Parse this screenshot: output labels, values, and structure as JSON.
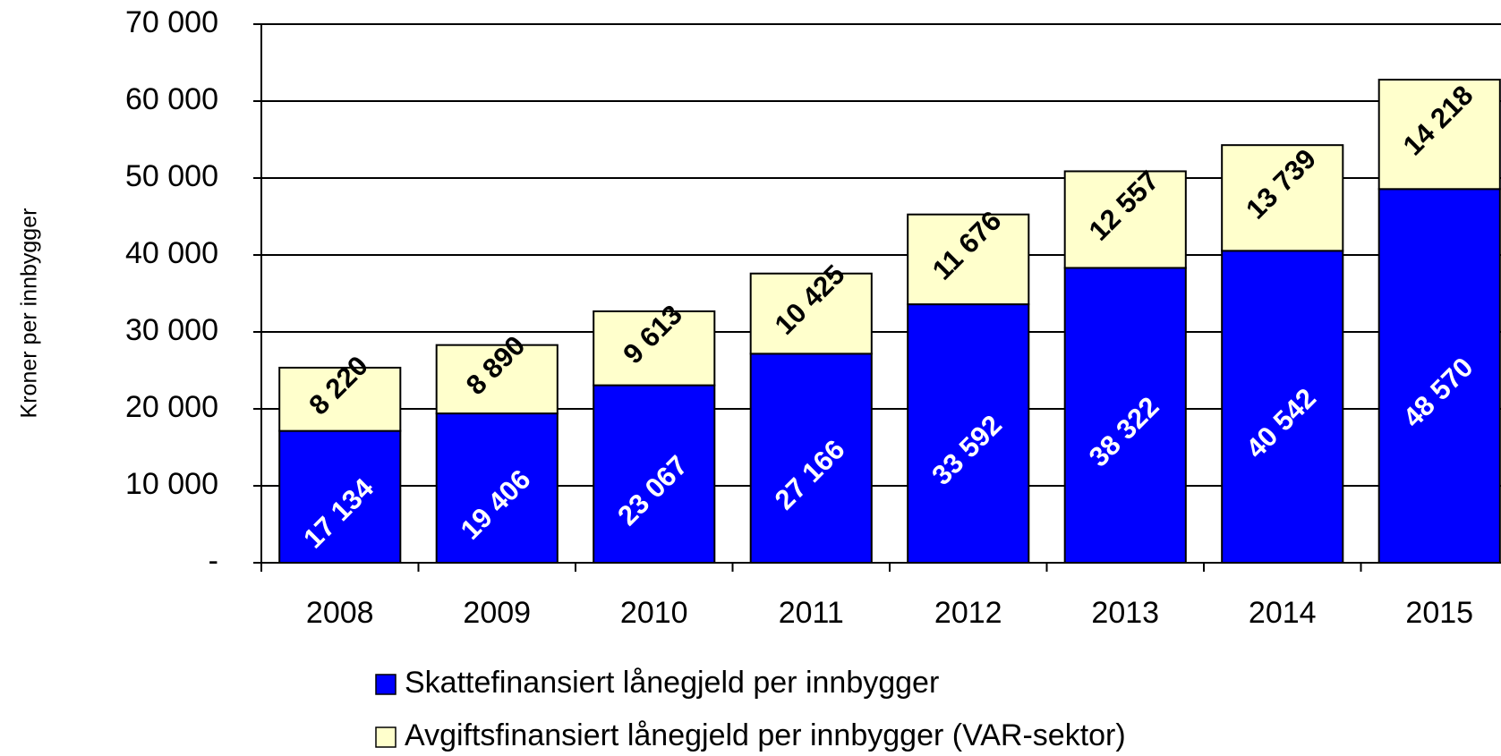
{
  "chart_data": {
    "type": "stacked-bar",
    "y_label": "Kroner per innbygger",
    "categories": [
      "2008",
      "2009",
      "2010",
      "2011",
      "2012",
      "2013",
      "2014",
      "2015"
    ],
    "series": [
      {
        "name": "Skattefinansiert lånegjeld per innbygger",
        "color": "#0000ff",
        "values": [
          17134,
          19406,
          23067,
          27166,
          33592,
          38322,
          40542,
          48570
        ],
        "value_labels": [
          "17 134",
          "19 406",
          "23 067",
          "27 166",
          "33 592",
          "38 322",
          "40 542",
          "48 570"
        ]
      },
      {
        "name": "Avgiftsfinansiert lånegjeld per innbygger (VAR-sektor)",
        "color": "#ffffcc",
        "values": [
          8220,
          8890,
          9613,
          10425,
          11676,
          12557,
          13739,
          14218
        ],
        "value_labels": [
          "8 220",
          "8 890",
          "9 613",
          "10 425",
          "11 676",
          "12 557",
          "13 739",
          "14 218"
        ]
      }
    ],
    "ylim": [
      0,
      70000
    ],
    "yticks": [
      {
        "value": 0,
        "label": "-"
      },
      {
        "value": 10000,
        "label": "10 000"
      },
      {
        "value": 20000,
        "label": "20 000"
      },
      {
        "value": 30000,
        "label": "30 000"
      },
      {
        "value": 40000,
        "label": "40 000"
      },
      {
        "value": 50000,
        "label": "50 000"
      },
      {
        "value": 60000,
        "label": "60 000"
      },
      {
        "value": 70000,
        "label": "70 000"
      }
    ],
    "grid": true
  }
}
